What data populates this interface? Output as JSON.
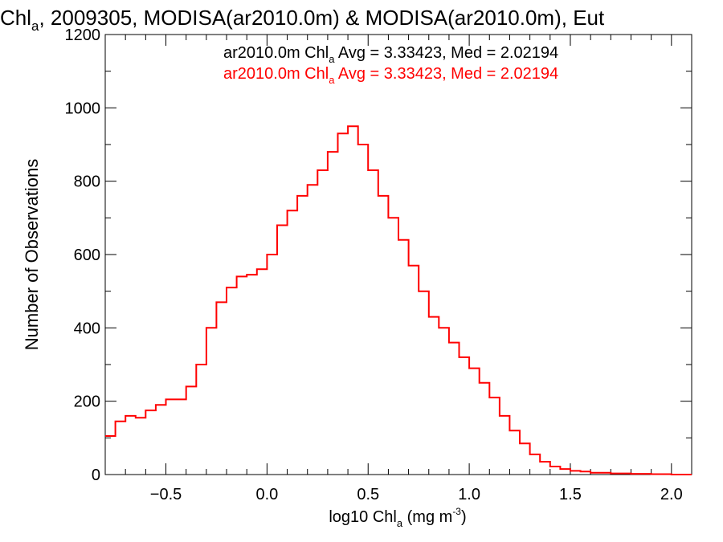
{
  "chart_data": {
    "type": "line",
    "title_main": "Chl",
    "title_sub": "a",
    "title_rest": ", 2009305, MODISA(ar2010.0m) & MODISA(ar2010.0m), Eut",
    "xlabel_main": "log10 Chl",
    "xlabel_sub": "a",
    "xlabel_unit": " (mg m",
    "xlabel_sup": "-3",
    "xlabel_close": ")",
    "ylabel": "Number of Observations",
    "xlim": [
      -0.8,
      2.1
    ],
    "ylim": [
      0,
      1200
    ],
    "x_ticks": [
      -0.5,
      0.0,
      0.5,
      1.0,
      1.5,
      2.0
    ],
    "x_tick_labels": [
      "−0.5",
      "0.0",
      "0.5",
      "1.0",
      "1.5",
      "2.0"
    ],
    "y_ticks": [
      0,
      200,
      400,
      600,
      800,
      1000,
      1200
    ],
    "y_tick_labels": [
      "0",
      "200",
      "400",
      "600",
      "800",
      "1000",
      "1200"
    ],
    "grid": false,
    "legend_position": "top-right",
    "series": [
      {
        "label_main": "ar2010.0m Chl",
        "label_sub": "a",
        "label_rest": " Avg = 3.33423, Med = 2.02194",
        "color": "#000000"
      },
      {
        "label_main": "ar2010.0m Chl",
        "label_sub": "a",
        "label_rest": " Avg = 3.33423, Med = 2.02194",
        "color": "#ff0000"
      }
    ],
    "histogram": {
      "color": "#ff0000",
      "x": [
        -0.8,
        -0.75,
        -0.7,
        -0.65,
        -0.6,
        -0.55,
        -0.5,
        -0.45,
        -0.4,
        -0.35,
        -0.3,
        -0.25,
        -0.2,
        -0.15,
        -0.1,
        -0.05,
        0.0,
        0.05,
        0.1,
        0.15,
        0.2,
        0.25,
        0.3,
        0.35,
        0.4,
        0.45,
        0.5,
        0.55,
        0.6,
        0.65,
        0.7,
        0.75,
        0.8,
        0.85,
        0.9,
        0.95,
        1.0,
        1.05,
        1.1,
        1.15,
        1.2,
        1.25,
        1.3,
        1.35,
        1.4,
        1.45,
        1.5,
        1.55,
        1.6,
        1.7,
        1.8,
        1.9,
        2.0,
        2.1
      ],
      "y": [
        105,
        145,
        160,
        155,
        175,
        190,
        205,
        205,
        240,
        300,
        400,
        470,
        510,
        540,
        545,
        560,
        600,
        680,
        720,
        760,
        790,
        830,
        880,
        930,
        950,
        900,
        830,
        760,
        700,
        640,
        570,
        500,
        430,
        400,
        360,
        320,
        290,
        250,
        210,
        160,
        120,
        85,
        55,
        35,
        22,
        15,
        10,
        8,
        5,
        3,
        2,
        1,
        0,
        0
      ]
    }
  }
}
